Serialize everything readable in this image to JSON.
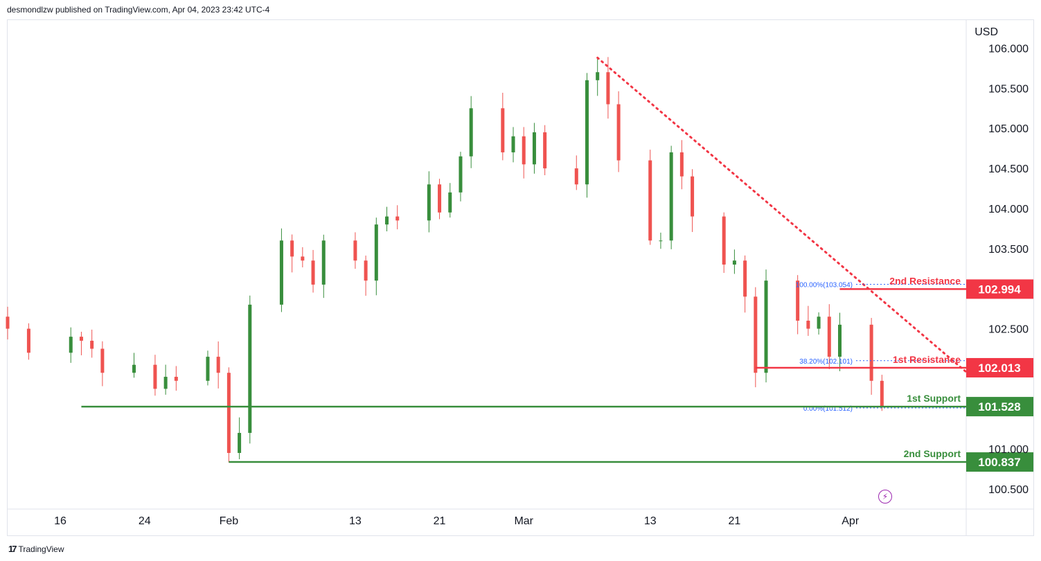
{
  "header": {
    "publisher": "desmondlzw published on TradingView.com, Apr 04, 2023 23:42 UTC-4"
  },
  "footer": {
    "brand": "TradingView",
    "logo": "tv-logo-icon"
  },
  "colors": {
    "up": "#388e3c",
    "down": "#ef5350",
    "support": "#388e3c",
    "resistance": "#f23645",
    "fib": "#2962ff",
    "trend": "#f23645"
  },
  "chart_data": {
    "type": "candlestick",
    "currency_label": "USD",
    "ylim": [
      100.25,
      106.35
    ],
    "y_ticks": [
      "106.000",
      "105.500",
      "105.000",
      "104.500",
      "104.000",
      "103.500",
      "102.500",
      "101.000",
      "100.500"
    ],
    "x_ticks": [
      "16",
      "24",
      "Feb",
      "13",
      "21",
      "Mar",
      "13",
      "21",
      "Apr"
    ],
    "x_tick_dates": [
      "2023-01-16",
      "2023-01-24",
      "2023-02-01",
      "2023-02-13",
      "2023-02-21",
      "2023-03-01",
      "2023-03-13",
      "2023-03-21",
      "2023-04-01"
    ],
    "x_range": [
      "2023-01-11",
      "2023-04-12"
    ],
    "closes": [
      {
        "date": "2023-01-11",
        "close": 102.5
      },
      {
        "date": "2023-01-13",
        "close": 102.2
      },
      {
        "date": "2023-01-17",
        "close": 102.4
      },
      {
        "date": "2023-01-18",
        "close": 102.35
      },
      {
        "date": "2023-01-19",
        "close": 102.25
      },
      {
        "date": "2023-01-20",
        "close": 101.95
      },
      {
        "date": "2023-01-23",
        "close": 102.05
      },
      {
        "date": "2023-01-25",
        "close": 101.75
      },
      {
        "date": "2023-01-26",
        "close": 101.9
      },
      {
        "date": "2023-01-27",
        "close": 101.85
      },
      {
        "date": "2023-01-30",
        "close": 102.15
      },
      {
        "date": "2023-01-31",
        "close": 101.95
      },
      {
        "date": "2023-02-01",
        "close": 100.95
      },
      {
        "date": "2023-02-02",
        "close": 101.2
      },
      {
        "date": "2023-02-03",
        "close": 102.8
      },
      {
        "date": "2023-02-06",
        "close": 103.6
      },
      {
        "date": "2023-02-07",
        "close": 103.4
      },
      {
        "date": "2023-02-08",
        "close": 103.35
      },
      {
        "date": "2023-02-09",
        "close": 103.05
      },
      {
        "date": "2023-02-10",
        "close": 103.6
      },
      {
        "date": "2023-02-13",
        "close": 103.35
      },
      {
        "date": "2023-02-14",
        "close": 103.1
      },
      {
        "date": "2023-02-15",
        "close": 103.8
      },
      {
        "date": "2023-02-16",
        "close": 103.9
      },
      {
        "date": "2023-02-17",
        "close": 103.85
      },
      {
        "date": "2023-02-20",
        "close": 104.3
      },
      {
        "date": "2023-02-21",
        "close": 103.95
      },
      {
        "date": "2023-02-22",
        "close": 104.2
      },
      {
        "date": "2023-02-23",
        "close": 104.65
      },
      {
        "date": "2023-02-24",
        "close": 105.25
      },
      {
        "date": "2023-02-27",
        "close": 104.7
      },
      {
        "date": "2023-02-28",
        "close": 104.9
      },
      {
        "date": "2023-03-01",
        "close": 104.55
      },
      {
        "date": "2023-03-02",
        "close": 104.95
      },
      {
        "date": "2023-03-03",
        "close": 104.5
      },
      {
        "date": "2023-03-06",
        "close": 104.3
      },
      {
        "date": "2023-03-07",
        "close": 105.6
      },
      {
        "date": "2023-03-08",
        "close": 105.7
      },
      {
        "date": "2023-03-09",
        "close": 105.3
      },
      {
        "date": "2023-03-10",
        "close": 104.6
      },
      {
        "date": "2023-03-13",
        "close": 103.6
      },
      {
        "date": "2023-03-14",
        "close": 103.6
      },
      {
        "date": "2023-03-15",
        "close": 104.7
      },
      {
        "date": "2023-03-16",
        "close": 104.4
      },
      {
        "date": "2023-03-17",
        "close": 103.9
      },
      {
        "date": "2023-03-20",
        "close": 103.3
      },
      {
        "date": "2023-03-21",
        "close": 103.35
      },
      {
        "date": "2023-03-22",
        "close": 102.9
      },
      {
        "date": "2023-03-23",
        "close": 101.95
      },
      {
        "date": "2023-03-24",
        "close": 103.1
      },
      {
        "date": "2023-03-27",
        "close": 102.6
      },
      {
        "date": "2023-03-28",
        "close": 102.5
      },
      {
        "date": "2023-03-29",
        "close": 102.65
      },
      {
        "date": "2023-03-30",
        "close": 102.15
      },
      {
        "date": "2023-03-31",
        "close": 102.55
      },
      {
        "date": "2023-04-03",
        "close": 101.85
      },
      {
        "date": "2023-04-04",
        "close": 101.53
      }
    ],
    "levels": [
      {
        "name": "2nd Resistance",
        "value": 102.994,
        "kind": "resistance",
        "start": "2023-03-31"
      },
      {
        "name": "1st Resistance",
        "value": 102.013,
        "kind": "resistance",
        "start": "2023-03-23"
      },
      {
        "name": "1st Support",
        "value": 101.528,
        "kind": "support",
        "start": "2023-01-18"
      },
      {
        "name": "2nd Support",
        "value": 100.837,
        "kind": "support",
        "start": "2023-02-01"
      }
    ],
    "fib": [
      {
        "label": "100.00%(103.054)",
        "value": 103.054
      },
      {
        "label": "38.20%(102.101)",
        "value": 102.101
      },
      {
        "label": "0.00%(101.512)",
        "value": 101.512
      }
    ],
    "trendline": {
      "from": [
        "2023-03-08",
        105.88
      ],
      "to": [
        "2023-04-12",
        101.96
      ]
    }
  }
}
